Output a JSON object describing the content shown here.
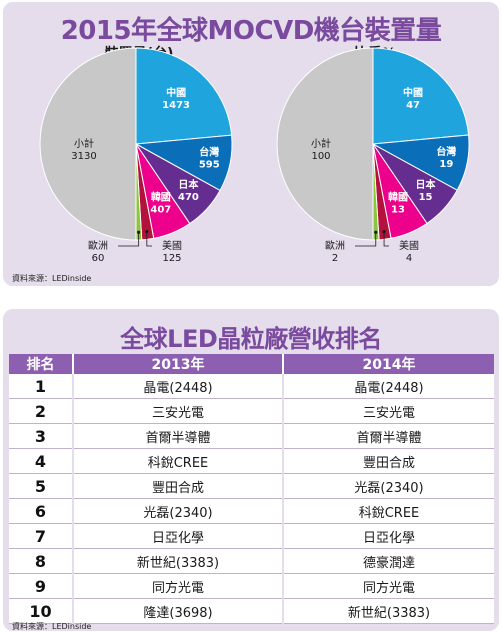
{
  "top": {
    "title": "2015年全球MOCVD機台裝置量",
    "source": "資料來源：LEDinside"
  },
  "bottom": {
    "title": "全球LED晶粒廠營收排名",
    "source": "資料來源：LEDinside",
    "headers": [
      "排名",
      "2013年",
      "2014年"
    ],
    "rows": [
      [
        "1",
        "晶電(2448)",
        "晶電(2448)"
      ],
      [
        "2",
        "三安光電",
        "三安光電"
      ],
      [
        "3",
        "首爾半導體",
        "首爾半導體"
      ],
      [
        "4",
        "科銳CREE",
        "豐田合成"
      ],
      [
        "5",
        "豐田合成",
        "光磊(2340)"
      ],
      [
        "6",
        "光磊(2340)",
        "科銳CREE"
      ],
      [
        "7",
        "日亞化學",
        "日亞化學"
      ],
      [
        "8",
        "新世紀(3383)",
        "德豪潤達"
      ],
      [
        "9",
        "同方光電",
        "同方光電"
      ],
      [
        "10",
        "隆達(3698)",
        "新世紀(3383)"
      ]
    ]
  },
  "colors": {
    "中國": "#1fa4dd",
    "台灣": "#0a6fb8",
    "日本": "#662d91",
    "韓國": "#ec008c",
    "美國": "#b3123c",
    "歐洲": "#8cc63f",
    "小計": "#c8c8c8"
  },
  "chart_data": [
    {
      "type": "pie",
      "title": "裝置量(台)",
      "slices": [
        {
          "label": "中國",
          "value": 1473
        },
        {
          "label": "台灣",
          "value": 595
        },
        {
          "label": "日本",
          "value": 470
        },
        {
          "label": "韓國",
          "value": 407
        },
        {
          "label": "美國",
          "value": 125
        },
        {
          "label": "歐洲",
          "value": 60
        },
        {
          "label": "小計",
          "value": 3130
        }
      ]
    },
    {
      "type": "pie",
      "title": "比重%",
      "slices": [
        {
          "label": "中國",
          "value": 47
        },
        {
          "label": "台灣",
          "value": 19
        },
        {
          "label": "日本",
          "value": 15
        },
        {
          "label": "韓國",
          "value": 13
        },
        {
          "label": "美國",
          "value": 4
        },
        {
          "label": "歐洲",
          "value": 2
        },
        {
          "label": "小計",
          "value": 100
        }
      ]
    }
  ]
}
